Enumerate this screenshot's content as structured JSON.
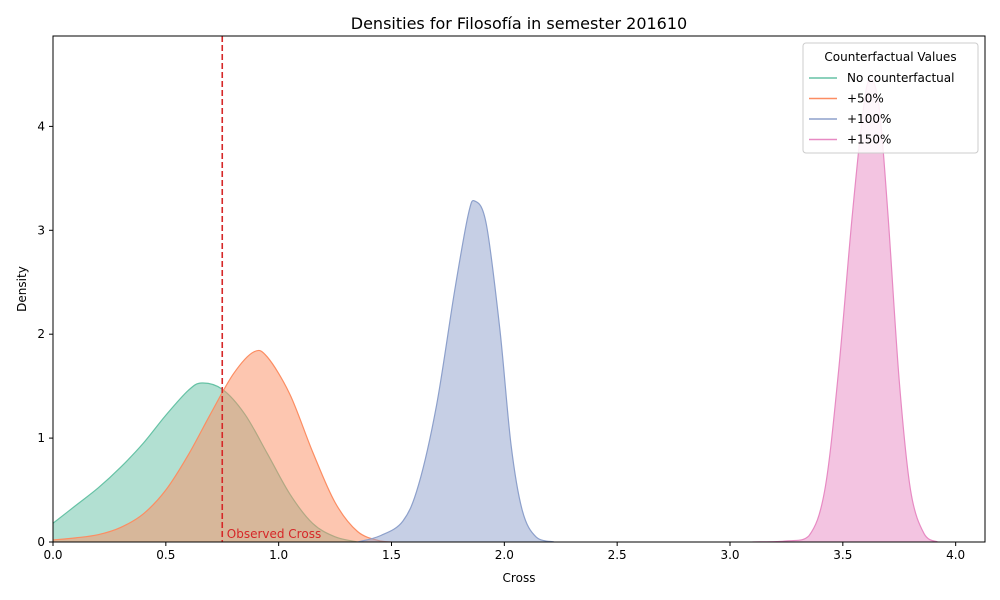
{
  "chart_data": {
    "type": "area",
    "title": "Densities for Filosofía in semester 201610",
    "xlabel": "Cross",
    "ylabel": "Density",
    "xlim": [
      0.0,
      4.13
    ],
    "ylim": [
      0,
      4.87
    ],
    "xticks": [
      0.0,
      0.5,
      1.0,
      1.5,
      2.0,
      2.5,
      3.0,
      3.5,
      4.0
    ],
    "xtick_labels": [
      "0.0",
      "0.5",
      "1.0",
      "1.5",
      "2.0",
      "2.5",
      "3.0",
      "3.5",
      "4.0"
    ],
    "yticks": [
      0,
      1,
      2,
      3,
      4
    ],
    "ytick_labels": [
      "0",
      "1",
      "2",
      "3",
      "4"
    ],
    "grid": false,
    "legend": {
      "title": "Counterfactual Values",
      "placement": "top-right"
    },
    "series": [
      {
        "name": "No counterfactual",
        "color": "#66c2a5",
        "points": [
          [
            0.0,
            0.18
          ],
          [
            0.1,
            0.35
          ],
          [
            0.2,
            0.52
          ],
          [
            0.3,
            0.72
          ],
          [
            0.4,
            0.95
          ],
          [
            0.5,
            1.22
          ],
          [
            0.6,
            1.46
          ],
          [
            0.66,
            1.53
          ],
          [
            0.75,
            1.47
          ],
          [
            0.85,
            1.23
          ],
          [
            0.95,
            0.85
          ],
          [
            1.05,
            0.46
          ],
          [
            1.15,
            0.18
          ],
          [
            1.25,
            0.05
          ],
          [
            1.35,
            0.0
          ]
        ]
      },
      {
        "name": "+50%",
        "color": "#fc8d62",
        "points": [
          [
            0.0,
            0.02
          ],
          [
            0.1,
            0.04
          ],
          [
            0.2,
            0.07
          ],
          [
            0.3,
            0.14
          ],
          [
            0.4,
            0.27
          ],
          [
            0.5,
            0.5
          ],
          [
            0.6,
            0.84
          ],
          [
            0.7,
            1.24
          ],
          [
            0.8,
            1.62
          ],
          [
            0.89,
            1.83
          ],
          [
            0.95,
            1.78
          ],
          [
            1.05,
            1.42
          ],
          [
            1.15,
            0.87
          ],
          [
            1.25,
            0.38
          ],
          [
            1.35,
            0.1
          ],
          [
            1.45,
            0.01
          ],
          [
            1.5,
            0.0
          ]
        ]
      },
      {
        "name": "+100%",
        "color": "#8da0cb",
        "points": [
          [
            1.35,
            0.0
          ],
          [
            1.45,
            0.06
          ],
          [
            1.55,
            0.2
          ],
          [
            1.62,
            0.55
          ],
          [
            1.7,
            1.32
          ],
          [
            1.78,
            2.42
          ],
          [
            1.84,
            3.15
          ],
          [
            1.87,
            3.28
          ],
          [
            1.92,
            3.06
          ],
          [
            1.98,
            2.05
          ],
          [
            2.03,
            0.93
          ],
          [
            2.08,
            0.3
          ],
          [
            2.14,
            0.05
          ],
          [
            2.22,
            0.0
          ]
        ]
      },
      {
        "name": "+150%",
        "color": "#e78ac3",
        "points": [
          [
            3.1,
            0.0
          ],
          [
            3.25,
            0.01
          ],
          [
            3.35,
            0.06
          ],
          [
            3.42,
            0.5
          ],
          [
            3.48,
            1.62
          ],
          [
            3.54,
            3.1
          ],
          [
            3.59,
            4.15
          ],
          [
            3.62,
            4.45
          ],
          [
            3.66,
            4.2
          ],
          [
            3.7,
            3.15
          ],
          [
            3.75,
            1.55
          ],
          [
            3.8,
            0.5
          ],
          [
            3.86,
            0.08
          ],
          [
            3.92,
            0.0
          ]
        ]
      }
    ],
    "annotations": [
      {
        "type": "vline",
        "x": 0.75,
        "color": "#d62728",
        "label": "Observed Cross",
        "label_x": 0.77,
        "label_y": 0.02
      }
    ]
  }
}
